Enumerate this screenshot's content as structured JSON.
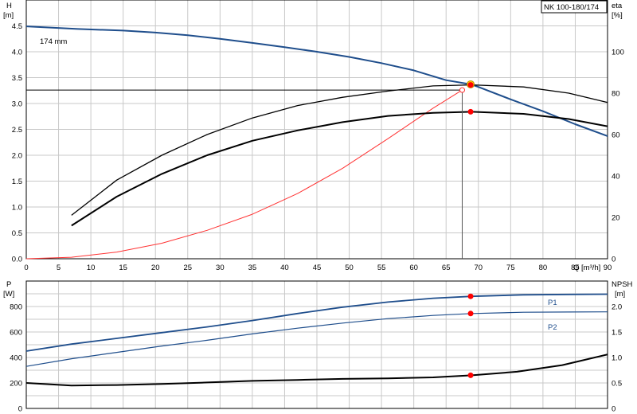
{
  "chart_data": [
    {
      "type": "line",
      "model_label": "NK 100-180/174",
      "impeller_label": "174 mm",
      "left_axis": {
        "label": "H",
        "unit": "[m]",
        "range": [
          0,
          5.0
        ],
        "ticks": [
          "0.0",
          "0.5",
          "1.0",
          "1.5",
          "2.0",
          "2.5",
          "3.0",
          "3.5",
          "4.0",
          "4.5"
        ]
      },
      "right_axis": {
        "label": "eta",
        "unit": "[%]",
        "range": [
          0,
          125
        ],
        "ticks": [
          "0",
          "20",
          "40",
          "60",
          "80",
          "100"
        ]
      },
      "x_axis": {
        "label": "Q [m³/h]",
        "range": [
          0,
          90
        ],
        "ticks": [
          "0",
          "5",
          "10",
          "15",
          "20",
          "25",
          "30",
          "35",
          "40",
          "45",
          "50",
          "55",
          "60",
          "65",
          "70",
          "75",
          "80",
          "85",
          "90"
        ]
      },
      "series": [
        {
          "key": "head",
          "axis": "left",
          "color": "#1f4e8c",
          "x": [
            0,
            8,
            15,
            20,
            25,
            30,
            35,
            40,
            45,
            50,
            55,
            60,
            65,
            68.8,
            70,
            75,
            80,
            85,
            90
          ],
          "y": [
            4.49,
            4.44,
            4.41,
            4.37,
            4.32,
            4.25,
            4.17,
            4.09,
            4.0,
            3.9,
            3.78,
            3.64,
            3.45,
            3.37,
            3.32,
            3.08,
            2.85,
            2.6,
            2.37
          ]
        },
        {
          "key": "system",
          "axis": "left",
          "color": "#ff3333",
          "x": [
            0,
            7,
            14,
            21,
            28,
            35,
            42,
            49,
            56,
            63,
            67.5
          ],
          "y": [
            0,
            0.03,
            0.13,
            0.3,
            0.55,
            0.86,
            1.26,
            1.75,
            2.32,
            2.91,
            3.26
          ]
        },
        {
          "key": "eta_pump",
          "axis": "right",
          "color": "#000000",
          "x": [
            7,
            14,
            21,
            28,
            35,
            42,
            49,
            56,
            63,
            69,
            77,
            84,
            90
          ],
          "y": [
            21,
            38,
            50,
            60,
            68,
            74,
            78,
            81,
            83.5,
            84,
            83,
            80,
            75.5
          ]
        },
        {
          "key": "eta_total",
          "axis": "right",
          "color": "#000000",
          "x": [
            7,
            14,
            21,
            28,
            35,
            42,
            49,
            56,
            63,
            69,
            77,
            84,
            90
          ],
          "y": [
            16,
            30,
            41,
            50,
            57,
            62,
            66,
            69,
            70.5,
            71,
            70,
            67.5,
            64
          ]
        }
      ],
      "duty_point": {
        "q": 68.8,
        "h": 3.37,
        "eta_pump": 84,
        "eta_total": 71
      },
      "system_end": {
        "q": 67.5,
        "h": 3.26
      }
    },
    {
      "type": "line",
      "left_axis": {
        "label": "P",
        "unit": "[W]",
        "range": [
          0,
          1000
        ],
        "ticks": [
          "0",
          "200",
          "400",
          "600",
          "800"
        ]
      },
      "right_axis": {
        "label": "NPSH",
        "unit": "[m]",
        "range": [
          0,
          2.5
        ],
        "ticks": [
          "0",
          "0.5",
          "1.0",
          "1.5",
          "2.0"
        ]
      },
      "x_axis": {
        "range": [
          0,
          90
        ]
      },
      "series": [
        {
          "key": "P1",
          "name": "P1",
          "axis": "left",
          "color": "#1f4e8c",
          "x": [
            0,
            7,
            14,
            21,
            28,
            35,
            42,
            49,
            56,
            63,
            69,
            77,
            84,
            90
          ],
          "y": [
            450,
            505,
            550,
            595,
            640,
            690,
            745,
            795,
            835,
            865,
            880,
            892,
            895,
            897
          ]
        },
        {
          "key": "P2",
          "name": "P2",
          "axis": "left",
          "color": "#1f4e8c",
          "x": [
            0,
            7,
            14,
            21,
            28,
            35,
            42,
            49,
            56,
            63,
            69,
            77,
            84,
            90
          ],
          "y": [
            330,
            390,
            440,
            490,
            535,
            585,
            630,
            670,
            705,
            730,
            745,
            755,
            757,
            758
          ]
        },
        {
          "key": "npsh",
          "axis": "right",
          "color": "#000000",
          "x": [
            0,
            7,
            14,
            21,
            28,
            35,
            42,
            49,
            56,
            63,
            69,
            76,
            83,
            90
          ],
          "y": [
            0.5,
            0.45,
            0.46,
            0.48,
            0.51,
            0.54,
            0.56,
            0.58,
            0.59,
            0.61,
            0.65,
            0.72,
            0.85,
            1.06
          ]
        }
      ],
      "duty_point": {
        "q": 68.8,
        "P1": 880,
        "P2": 745,
        "npsh": 0.65
      }
    }
  ]
}
